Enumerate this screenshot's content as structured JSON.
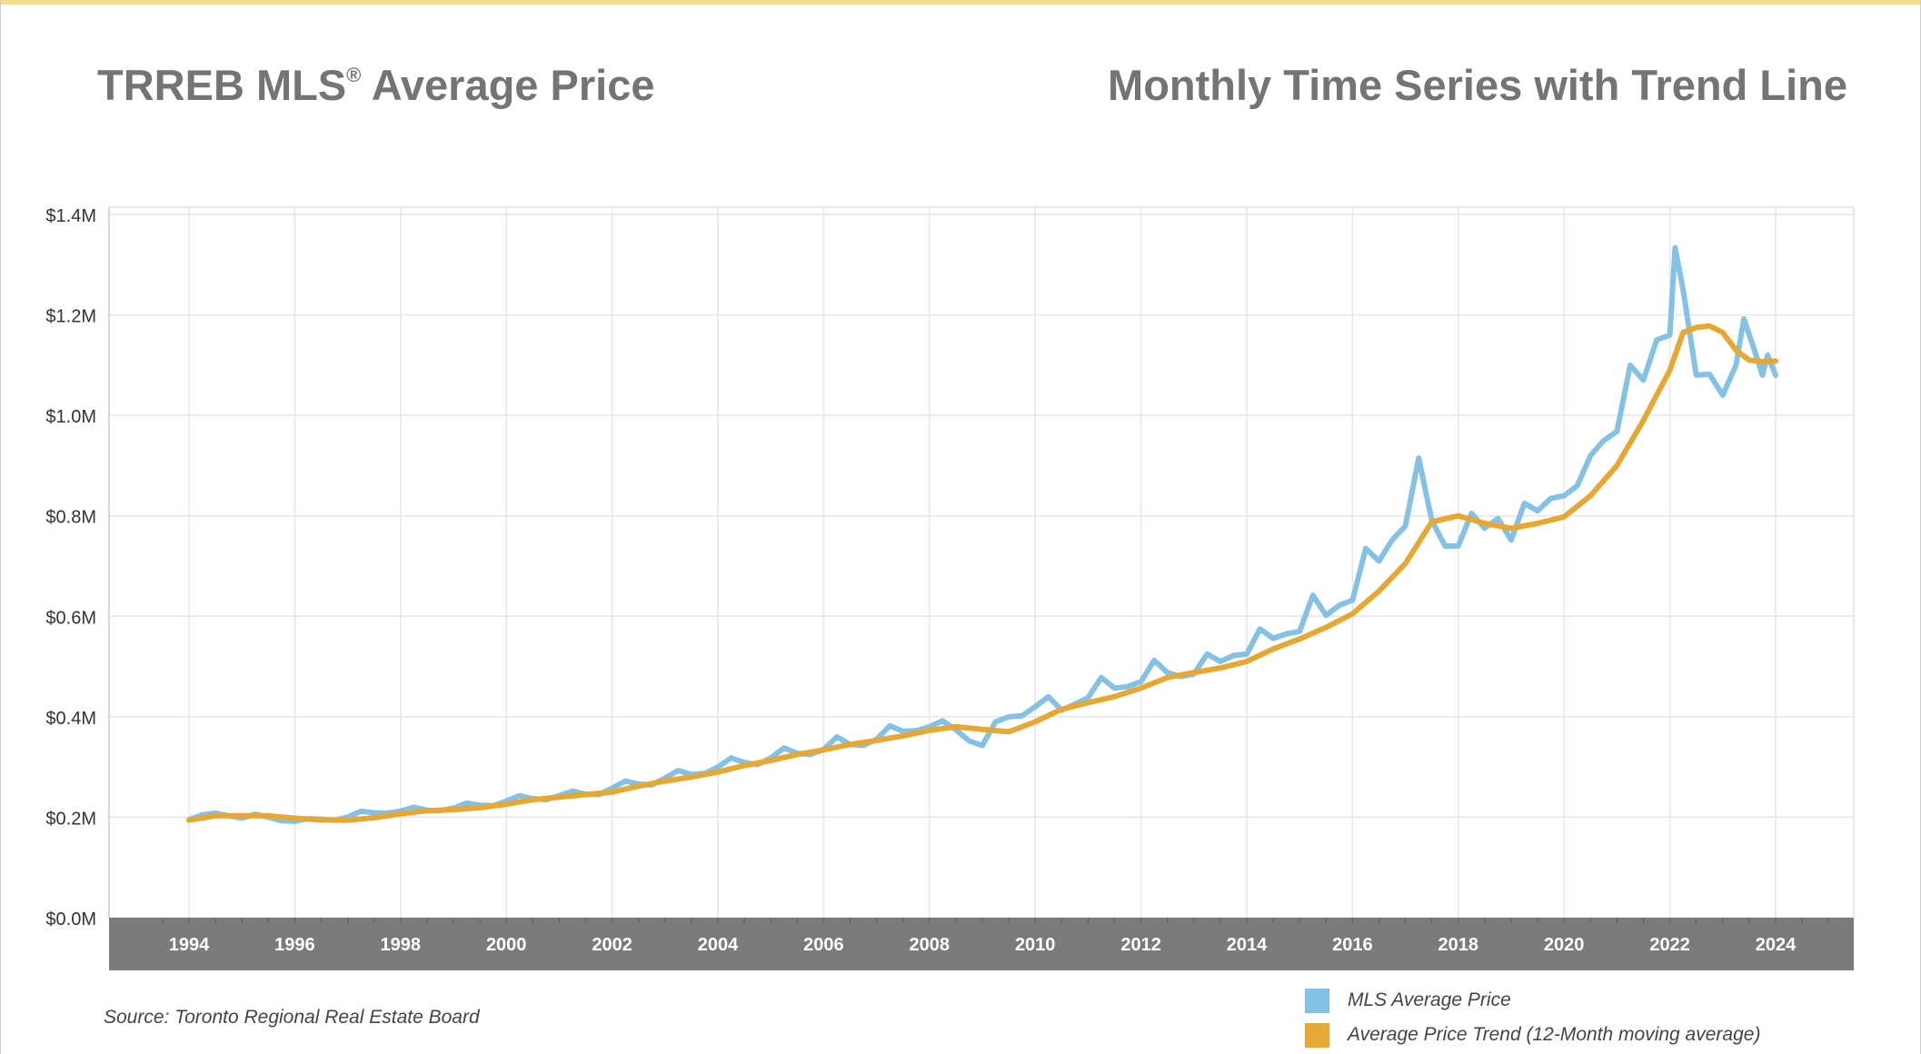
{
  "header": {
    "title_main": "TRREB MLS",
    "title_reg": "®",
    "title_rest": " Average Price",
    "subtitle": "Monthly Time Series with Trend Line"
  },
  "source": "Source: Toronto Regional Real Estate Board",
  "colors": {
    "price": "#85c1e5",
    "trend": "#e6a832",
    "axis_band": "#7b7b7d",
    "grid": "#e6e6e6",
    "top_border": "#f3dd8a"
  },
  "chart_data": {
    "type": "line",
    "x_range": [
      1992.8,
      2025.4
    ],
    "y_range": [
      0,
      1400000
    ],
    "x_ticks": [
      "1994",
      "1996",
      "1998",
      "2000",
      "2002",
      "2004",
      "2006",
      "2008",
      "2010",
      "2012",
      "2014",
      "2016",
      "2018",
      "2020",
      "2022",
      "2024"
    ],
    "y_ticks": [
      "$0.0M",
      "$0.2M",
      "$0.4M",
      "$0.6M",
      "$0.8M",
      "$1.0M",
      "$1.2M",
      "$1.4M"
    ],
    "grid": true,
    "legend_position": "bottom-right",
    "series": [
      {
        "name": "MLS Average Price",
        "key": "price",
        "points": [
          [
            1994.0,
            195000
          ],
          [
            1994.25,
            205000
          ],
          [
            1994.5,
            208000
          ],
          [
            1994.75,
            203000
          ],
          [
            1995.0,
            198000
          ],
          [
            1995.25,
            206000
          ],
          [
            1995.5,
            200000
          ],
          [
            1995.75,
            193000
          ],
          [
            1996.0,
            192000
          ],
          [
            1996.25,
            197000
          ],
          [
            1996.5,
            196000
          ],
          [
            1996.75,
            194000
          ],
          [
            1997.0,
            200000
          ],
          [
            1997.25,
            212000
          ],
          [
            1997.5,
            209000
          ],
          [
            1997.75,
            208000
          ],
          [
            1998.0,
            212000
          ],
          [
            1998.25,
            220000
          ],
          [
            1998.5,
            214000
          ],
          [
            1998.75,
            213000
          ],
          [
            1999.0,
            218000
          ],
          [
            1999.25,
            228000
          ],
          [
            1999.5,
            224000
          ],
          [
            1999.75,
            223000
          ],
          [
            2000.0,
            232000
          ],
          [
            2000.25,
            243000
          ],
          [
            2000.5,
            237000
          ],
          [
            2000.75,
            235000
          ],
          [
            2001.0,
            243000
          ],
          [
            2001.25,
            252000
          ],
          [
            2001.5,
            246000
          ],
          [
            2001.75,
            245000
          ],
          [
            2002.0,
            258000
          ],
          [
            2002.25,
            272000
          ],
          [
            2002.5,
            266000
          ],
          [
            2002.75,
            264000
          ],
          [
            2003.0,
            278000
          ],
          [
            2003.25,
            293000
          ],
          [
            2003.5,
            285000
          ],
          [
            2003.75,
            287000
          ],
          [
            2004.0,
            300000
          ],
          [
            2004.25,
            318000
          ],
          [
            2004.5,
            309000
          ],
          [
            2004.75,
            305000
          ],
          [
            2005.0,
            318000
          ],
          [
            2005.25,
            338000
          ],
          [
            2005.5,
            327000
          ],
          [
            2005.75,
            325000
          ],
          [
            2006.0,
            335000
          ],
          [
            2006.25,
            360000
          ],
          [
            2006.5,
            345000
          ],
          [
            2006.75,
            343000
          ],
          [
            2007.0,
            355000
          ],
          [
            2007.25,
            382000
          ],
          [
            2007.5,
            371000
          ],
          [
            2007.75,
            372000
          ],
          [
            2008.0,
            380000
          ],
          [
            2008.25,
            392000
          ],
          [
            2008.5,
            374000
          ],
          [
            2008.75,
            352000
          ],
          [
            2009.0,
            343000
          ],
          [
            2009.25,
            390000
          ],
          [
            2009.5,
            400000
          ],
          [
            2009.75,
            402000
          ],
          [
            2010.0,
            420000
          ],
          [
            2010.25,
            440000
          ],
          [
            2010.5,
            413000
          ],
          [
            2010.75,
            425000
          ],
          [
            2011.0,
            438000
          ],
          [
            2011.25,
            478000
          ],
          [
            2011.5,
            457000
          ],
          [
            2011.75,
            460000
          ],
          [
            2012.0,
            470000
          ],
          [
            2012.25,
            512000
          ],
          [
            2012.5,
            488000
          ],
          [
            2012.75,
            480000
          ],
          [
            2013.0,
            485000
          ],
          [
            2013.25,
            525000
          ],
          [
            2013.5,
            510000
          ],
          [
            2013.75,
            522000
          ],
          [
            2014.0,
            525000
          ],
          [
            2014.25,
            575000
          ],
          [
            2014.5,
            556000
          ],
          [
            2014.75,
            565000
          ],
          [
            2015.0,
            570000
          ],
          [
            2015.25,
            642000
          ],
          [
            2015.5,
            602000
          ],
          [
            2015.75,
            622000
          ],
          [
            2016.0,
            632000
          ],
          [
            2016.25,
            735000
          ],
          [
            2016.5,
            710000
          ],
          [
            2016.75,
            752000
          ],
          [
            2017.0,
            780000
          ],
          [
            2017.25,
            915000
          ],
          [
            2017.5,
            790000
          ],
          [
            2017.75,
            740000
          ],
          [
            2018.0,
            740000
          ],
          [
            2018.25,
            805000
          ],
          [
            2018.5,
            775000
          ],
          [
            2018.75,
            795000
          ],
          [
            2019.0,
            752000
          ],
          [
            2019.25,
            825000
          ],
          [
            2019.5,
            810000
          ],
          [
            2019.75,
            835000
          ],
          [
            2020.0,
            840000
          ],
          [
            2020.25,
            860000
          ],
          [
            2020.5,
            920000
          ],
          [
            2020.75,
            950000
          ],
          [
            2021.0,
            968000
          ],
          [
            2021.25,
            1100000
          ],
          [
            2021.5,
            1070000
          ],
          [
            2021.75,
            1150000
          ],
          [
            2022.0,
            1160000
          ],
          [
            2022.1,
            1334000
          ],
          [
            2022.25,
            1250000
          ],
          [
            2022.5,
            1080000
          ],
          [
            2022.75,
            1082000
          ],
          [
            2023.0,
            1040000
          ],
          [
            2023.25,
            1100000
          ],
          [
            2023.4,
            1192000
          ],
          [
            2023.6,
            1130000
          ],
          [
            2023.75,
            1080000
          ],
          [
            2023.85,
            1120000
          ],
          [
            2024.0,
            1080000
          ]
        ]
      },
      {
        "name": "Average Price Trend (12-Month moving average)",
        "key": "trend",
        "points": [
          [
            1994.0,
            194000
          ],
          [
            1994.5,
            203000
          ],
          [
            1995.0,
            203000
          ],
          [
            1995.5,
            203000
          ],
          [
            1996.0,
            198000
          ],
          [
            1996.5,
            195000
          ],
          [
            1997.0,
            194000
          ],
          [
            1997.5,
            199000
          ],
          [
            1998.0,
            207000
          ],
          [
            1998.5,
            213000
          ],
          [
            1999.0,
            215000
          ],
          [
            1999.5,
            219000
          ],
          [
            2000.0,
            226000
          ],
          [
            2000.5,
            235000
          ],
          [
            2001.0,
            240000
          ],
          [
            2001.5,
            245000
          ],
          [
            2002.0,
            250000
          ],
          [
            2002.5,
            262000
          ],
          [
            2003.0,
            272000
          ],
          [
            2003.5,
            280000
          ],
          [
            2004.0,
            290000
          ],
          [
            2004.5,
            303000
          ],
          [
            2005.0,
            313000
          ],
          [
            2005.5,
            325000
          ],
          [
            2006.0,
            334000
          ],
          [
            2006.5,
            345000
          ],
          [
            2007.0,
            353000
          ],
          [
            2007.5,
            362000
          ],
          [
            2008.0,
            373000
          ],
          [
            2008.5,
            380000
          ],
          [
            2009.0,
            375000
          ],
          [
            2009.5,
            370000
          ],
          [
            2010.0,
            390000
          ],
          [
            2010.5,
            415000
          ],
          [
            2011.0,
            428000
          ],
          [
            2011.5,
            440000
          ],
          [
            2012.0,
            457000
          ],
          [
            2012.5,
            478000
          ],
          [
            2013.0,
            488000
          ],
          [
            2013.5,
            497000
          ],
          [
            2014.0,
            510000
          ],
          [
            2014.5,
            535000
          ],
          [
            2015.0,
            555000
          ],
          [
            2015.5,
            578000
          ],
          [
            2016.0,
            605000
          ],
          [
            2016.5,
            650000
          ],
          [
            2017.0,
            705000
          ],
          [
            2017.5,
            788000
          ],
          [
            2018.0,
            800000
          ],
          [
            2018.5,
            785000
          ],
          [
            2019.0,
            775000
          ],
          [
            2019.5,
            785000
          ],
          [
            2020.0,
            798000
          ],
          [
            2020.5,
            840000
          ],
          [
            2021.0,
            900000
          ],
          [
            2021.5,
            990000
          ],
          [
            2022.0,
            1090000
          ],
          [
            2022.25,
            1165000
          ],
          [
            2022.5,
            1175000
          ],
          [
            2022.75,
            1178000
          ],
          [
            2023.0,
            1165000
          ],
          [
            2023.25,
            1130000
          ],
          [
            2023.5,
            1110000
          ],
          [
            2023.75,
            1107000
          ],
          [
            2024.0,
            1108000
          ]
        ]
      }
    ]
  }
}
